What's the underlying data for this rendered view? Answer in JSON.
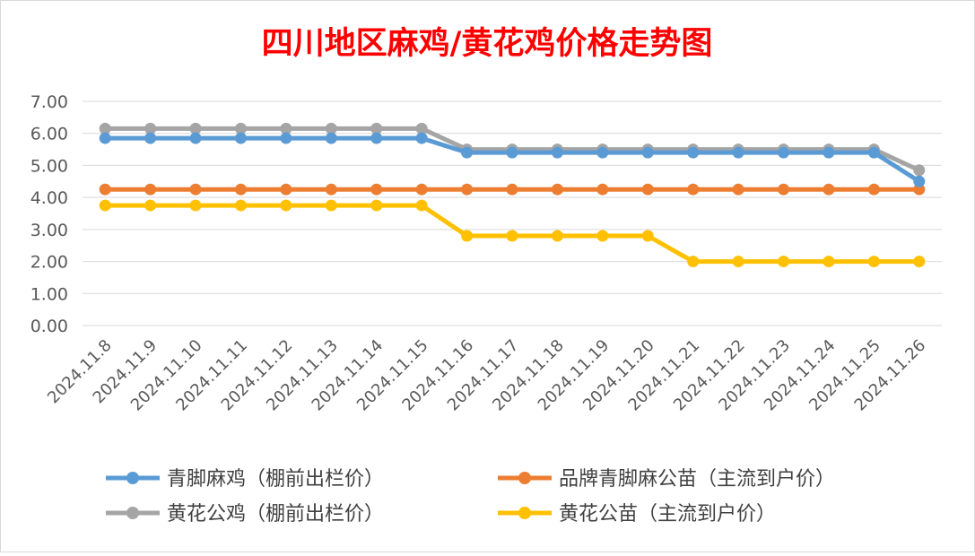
{
  "chart_data": {
    "type": "line",
    "title": "四川地区麻鸡/黄花鸡价格走势图",
    "categories": [
      "2024.11.8",
      "2024.11.9",
      "2024.11.10",
      "2024.11.11",
      "2024.11.12",
      "2024.11.13",
      "2024.11.14",
      "2024.11.15",
      "2024.11.16",
      "2024.11.17",
      "2024.11.18",
      "2024.11.19",
      "2024.11.20",
      "2024.11.21",
      "2024.11.22",
      "2024.11.23",
      "2024.11.24",
      "2024.11.25",
      "2024.11.26"
    ],
    "y_ticks": [
      "0.00",
      "1.00",
      "2.00",
      "3.00",
      "4.00",
      "5.00",
      "6.00",
      "7.00"
    ],
    "ylim": [
      0,
      7
    ],
    "grid": true,
    "legend_position": "bottom",
    "series": [
      {
        "name": "青脚麻鸡（棚前出栏价）",
        "color": "#5B9BD5",
        "values": [
          5.85,
          5.85,
          5.85,
          5.85,
          5.85,
          5.85,
          5.85,
          5.85,
          5.4,
          5.4,
          5.4,
          5.4,
          5.4,
          5.4,
          5.4,
          5.4,
          5.4,
          5.4,
          4.5
        ]
      },
      {
        "name": "品牌青脚麻公苗（主流到户价）",
        "color": "#ED7D31",
        "values": [
          4.25,
          4.25,
          4.25,
          4.25,
          4.25,
          4.25,
          4.25,
          4.25,
          4.25,
          4.25,
          4.25,
          4.25,
          4.25,
          4.25,
          4.25,
          4.25,
          4.25,
          4.25,
          4.25
        ]
      },
      {
        "name": "黄花公鸡（棚前出栏价）",
        "color": "#A5A5A5",
        "values": [
          6.15,
          6.15,
          6.15,
          6.15,
          6.15,
          6.15,
          6.15,
          6.15,
          5.5,
          5.5,
          5.5,
          5.5,
          5.5,
          5.5,
          5.5,
          5.5,
          5.5,
          5.5,
          4.85
        ]
      },
      {
        "name": "黄花公苗（主流到户价）",
        "color": "#FFC000",
        "values": [
          3.75,
          3.75,
          3.75,
          3.75,
          3.75,
          3.75,
          3.75,
          3.75,
          2.8,
          2.8,
          2.8,
          2.8,
          2.8,
          2.0,
          2.0,
          2.0,
          2.0,
          2.0,
          2.0
        ]
      }
    ],
    "title_color": "#FF0000"
  }
}
